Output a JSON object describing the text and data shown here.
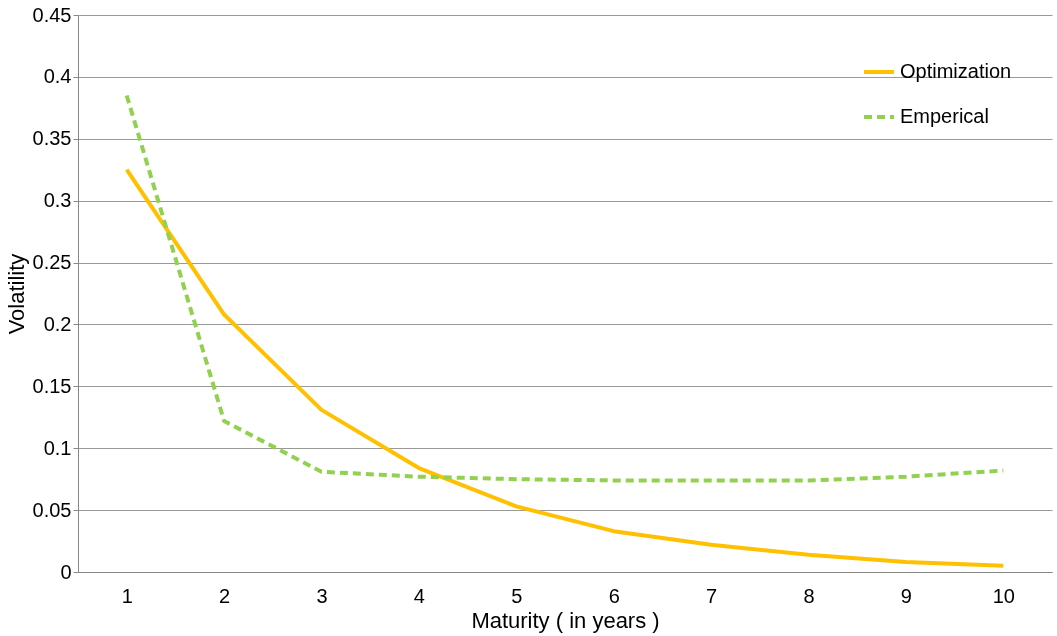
{
  "chart_data": {
    "type": "line",
    "xlabel": "Maturity ( in years )",
    "ylabel": "Volatility",
    "categories": [
      "1",
      "2",
      "3",
      "4",
      "5",
      "6",
      "7",
      "8",
      "9",
      "10"
    ],
    "series": [
      {
        "name": "Optimization",
        "color": "#ffc000",
        "line_style": "solid",
        "values": [
          0.325,
          0.208,
          0.131,
          0.084,
          0.053,
          0.033,
          0.022,
          0.014,
          0.008,
          0.005
        ]
      },
      {
        "name": "Emperical",
        "color": "#92d050",
        "line_style": "dashed",
        "values": [
          0.385,
          0.122,
          0.081,
          0.077,
          0.075,
          0.074,
          0.074,
          0.074,
          0.077,
          0.082
        ]
      }
    ],
    "ylim": [
      0,
      0.45
    ],
    "yticks": [
      0,
      0.05,
      0.1,
      0.15,
      0.2,
      0.25,
      0.3,
      0.35,
      0.4,
      0.45
    ],
    "grid": "y",
    "legend": "top right",
    "marker": "none"
  }
}
